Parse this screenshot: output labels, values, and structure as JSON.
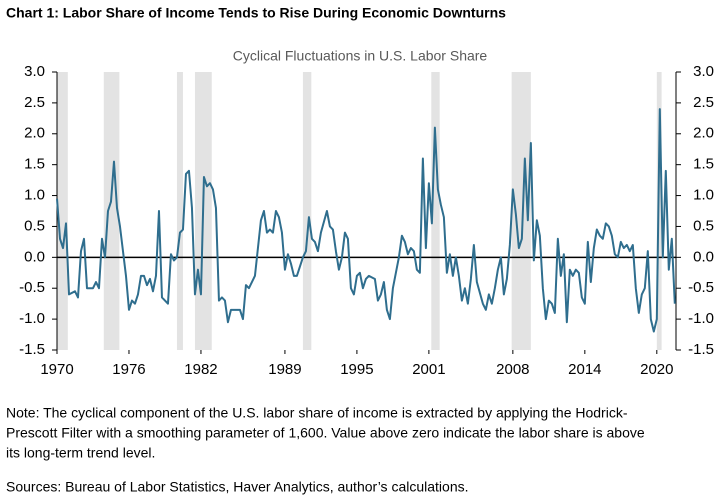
{
  "chart_data": {
    "type": "line",
    "title": "Chart 1: Labor Share of Income Tends to Rise During Economic Downturns",
    "subtitle": "Cyclical Fluctuations in U.S. Labor Share",
    "color": "#2f6e8e",
    "shade_color": "#e3e3e3",
    "shaded_periods": [
      [
        1970,
        1970.9
      ],
      [
        1973.9,
        1975.2
      ],
      [
        1980.0,
        1980.5
      ],
      [
        1981.5,
        1982.9
      ],
      [
        1990.5,
        1991.2
      ],
      [
        2001.2,
        2001.9
      ],
      [
        2007.9,
        2009.5
      ],
      [
        2020.0,
        2020.4
      ]
    ],
    "x": [
      1970.0,
      1970.25,
      1970.5,
      1970.75,
      1971.0,
      1971.5,
      1971.75,
      1972.0,
      1972.25,
      1972.5,
      1973.0,
      1973.25,
      1973.5,
      1973.75,
      1974.0,
      1974.25,
      1974.5,
      1974.75,
      1975.0,
      1975.25,
      1975.75,
      1976.0,
      1976.25,
      1976.5,
      1976.75,
      1977.0,
      1977.25,
      1977.5,
      1977.75,
      1978.0,
      1978.25,
      1978.5,
      1978.75,
      1979.0,
      1979.25,
      1979.5,
      1979.75,
      1980.0,
      1980.25,
      1980.5,
      1980.75,
      1981.0,
      1981.25,
      1981.5,
      1981.75,
      1982.0,
      1982.25,
      1982.5,
      1982.75,
      1983.0,
      1983.25,
      1983.5,
      1983.75,
      1984.0,
      1984.25,
      1984.5,
      1984.75,
      1985.25,
      1985.5,
      1985.75,
      1986.0,
      1986.5,
      1987.0,
      1987.25,
      1987.5,
      1987.75,
      1988.0,
      1988.25,
      1988.5,
      1988.75,
      1989.0,
      1989.25,
      1989.5,
      1989.75,
      1990.0,
      1990.5,
      1990.75,
      1991.0,
      1991.25,
      1991.5,
      1991.75,
      1992.0,
      1992.5,
      1992.75,
      1993.0,
      1993.25,
      1993.5,
      1993.75,
      1994.0,
      1994.25,
      1994.5,
      1994.75,
      1995.0,
      1995.25,
      1995.5,
      1995.75,
      1996.0,
      1996.5,
      1996.75,
      1997.0,
      1997.25,
      1997.5,
      1997.75,
      1998.0,
      1998.5,
      1998.75,
      1999.0,
      1999.25,
      1999.5,
      1999.75,
      2000.0,
      2000.25,
      2000.5,
      2000.75,
      2001.0,
      2001.25,
      2001.5,
      2001.75,
      2002.0,
      2002.25,
      2002.5,
      2002.75,
      2003.0,
      2003.25,
      2003.5,
      2003.75,
      2004.0,
      2004.25,
      2004.5,
      2004.75,
      2005.0,
      2005.5,
      2005.75,
      2006.0,
      2006.25,
      2006.5,
      2006.75,
      2007.0,
      2007.25,
      2007.5,
      2007.75,
      2008.0,
      2008.25,
      2008.5,
      2008.75,
      2009.0,
      2009.25,
      2009.5,
      2009.75,
      2010.0,
      2010.25,
      2010.5,
      2010.75,
      2011.0,
      2011.25,
      2011.5,
      2011.75,
      2012.0,
      2012.25,
      2012.5,
      2012.75,
      2013.0,
      2013.25,
      2013.5,
      2013.75,
      2014.0,
      2014.25,
      2014.5,
      2014.75,
      2015.0,
      2015.25,
      2015.5,
      2015.75,
      2016.0,
      2016.25,
      2016.5,
      2016.75,
      2017.0,
      2017.25,
      2017.5,
      2017.75,
      2018.0,
      2018.25,
      2018.5,
      2018.75,
      2019.0,
      2019.25,
      2019.5,
      2019.75,
      2020.0,
      2020.25,
      2020.5,
      2020.75,
      2021.0,
      2021.25,
      2021.5
    ],
    "values": [
      0.95,
      0.3,
      0.15,
      0.55,
      -0.6,
      -0.55,
      -0.65,
      0.1,
      0.3,
      -0.5,
      -0.5,
      -0.4,
      -0.5,
      0.3,
      0.0,
      0.75,
      0.9,
      1.55,
      0.8,
      0.5,
      -0.3,
      -0.85,
      -0.7,
      -0.75,
      -0.6,
      -0.3,
      -0.3,
      -0.45,
      -0.35,
      -0.55,
      -0.3,
      0.75,
      -0.65,
      -0.7,
      -0.75,
      0.05,
      -0.05,
      0.0,
      0.4,
      0.45,
      1.35,
      1.4,
      0.8,
      -0.6,
      -0.2,
      -0.6,
      1.3,
      1.15,
      1.2,
      1.1,
      0.8,
      -0.7,
      -0.65,
      -0.7,
      -1.05,
      -0.85,
      -0.85,
      -0.85,
      -1.0,
      -0.45,
      -0.5,
      -0.3,
      0.6,
      0.75,
      0.4,
      0.45,
      0.4,
      0.75,
      0.65,
      0.4,
      -0.2,
      0.05,
      -0.1,
      -0.3,
      -0.3,
      0.0,
      0.1,
      0.65,
      0.3,
      0.25,
      0.1,
      0.4,
      0.75,
      0.5,
      0.45,
      0.1,
      -0.2,
      0.0,
      0.4,
      0.3,
      -0.5,
      -0.6,
      -0.3,
      -0.25,
      -0.5,
      -0.35,
      -0.3,
      -0.35,
      -0.7,
      -0.6,
      -0.4,
      -0.85,
      -1.0,
      -0.5,
      0.0,
      0.35,
      0.25,
      0.05,
      0.15,
      0.1,
      -0.2,
      -0.25,
      1.6,
      0.15,
      1.2,
      0.55,
      2.1,
      1.1,
      0.85,
      0.65,
      -0.25,
      0.05,
      -0.3,
      0.0,
      -0.3,
      -0.7,
      -0.5,
      -0.75,
      -0.35,
      0.2,
      -0.4,
      -0.75,
      -0.85,
      -0.6,
      -0.75,
      -0.5,
      -0.2,
      0.0,
      -0.6,
      -0.35,
      0.2,
      1.1,
      0.7,
      0.15,
      0.3,
      1.6,
      0.6,
      1.85,
      -0.05,
      0.6,
      0.35,
      -0.5,
      -1.0,
      -0.7,
      -0.75,
      -0.9,
      0.3,
      -0.3,
      0.05,
      -1.05,
      -0.2,
      -0.3,
      -0.2,
      -0.25,
      -0.65,
      -0.75,
      0.25,
      -0.4,
      0.15,
      0.45,
      0.35,
      0.3,
      0.55,
      0.5,
      0.35,
      0.05,
      0.0,
      0.25,
      0.15,
      0.2,
      0.1,
      0.2,
      -0.5,
      -0.9,
      -0.6,
      -0.5,
      0.1,
      -1.0,
      -1.2,
      -1.0,
      2.4,
      0.0,
      1.4,
      -0.2,
      0.3,
      -0.75
    ],
    "xlim": [
      1970,
      2021.6
    ],
    "xticks": [
      1970,
      1976,
      1982,
      1989,
      1995,
      2001,
      2008,
      2014,
      2020
    ],
    "ylim": [
      -1.5,
      3.0
    ],
    "yticks": [
      {
        "value": 3.0,
        "label": "3.0"
      },
      {
        "value": 2.5,
        "label": "2.5"
      },
      {
        "value": 2.0,
        "label": "2.0"
      },
      {
        "value": 1.5,
        "label": "1.5"
      },
      {
        "value": 1.0,
        "label": "1.0"
      },
      {
        "value": 0.5,
        "label": "0.5"
      },
      {
        "value": 0,
        "label": "0.0"
      },
      {
        "value": -0.5,
        "label": "-0.5"
      },
      {
        "value": -1.0,
        "label": "-1.0"
      },
      {
        "value": -1.5,
        "label": "-1.5"
      }
    ],
    "y2lim": [
      -1.5,
      3.0
    ],
    "y2ticks": [
      {
        "value": 3.0,
        "label": "3.0"
      },
      {
        "value": 2.5,
        "label": "2.5"
      },
      {
        "value": 2.0,
        "label": "2.0"
      },
      {
        "value": 1.5,
        "label": "1.5"
      },
      {
        "value": 1.0,
        "label": "1.0"
      },
      {
        "value": 0.5,
        "label": "0.5"
      },
      {
        "value": 0,
        "label": "0.0"
      },
      {
        "value": -0.5,
        "label": "-0.5"
      },
      {
        "value": -1.0,
        "label": "-1.0"
      },
      {
        "value": -1.5,
        "label": "-1.5"
      }
    ],
    "note": [
      "Note: The cyclical component of the U.S. labor share of income is extracted by applying the Hodrick-",
      "Prescott Filter with a smoothing parameter of 1,600. Value above zero indicate the labor share is above",
      "its long-term trend level."
    ],
    "sources": "Sources: Bureau of Labor Statistics, Haver Analytics, author’s calculations."
  }
}
